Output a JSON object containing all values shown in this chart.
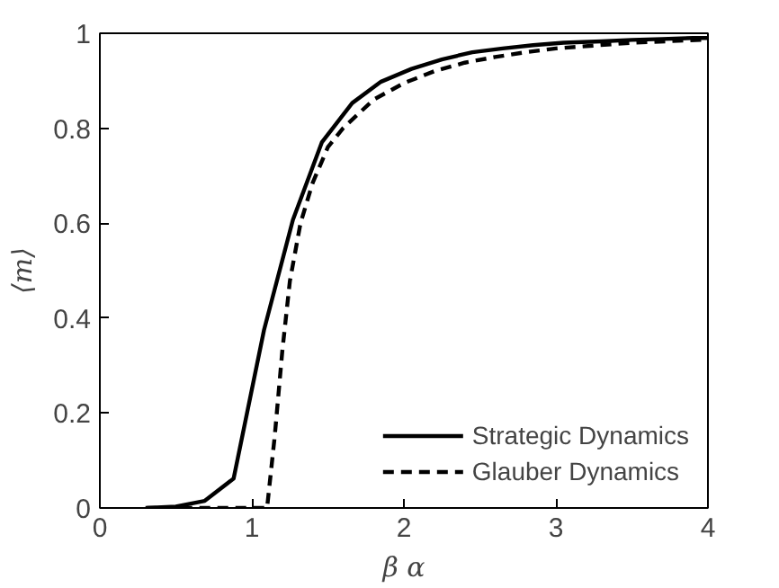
{
  "chart_data": {
    "type": "line",
    "xlabel": "β α",
    "ylabel": "⟨m⟩",
    "xlim": [
      0,
      4
    ],
    "ylim": [
      0,
      1
    ],
    "xticks": [
      0,
      1,
      2,
      3,
      4
    ],
    "yticks": [
      0,
      0.2,
      0.4,
      0.6,
      0.8,
      1
    ],
    "grid": false,
    "legend": "bottom right",
    "marker": "none",
    "series": [
      {
        "name": "Strategic Dynamics",
        "color": "#000000",
        "line_style": "solid",
        "x": [
          0.31,
          0.5,
          0.69,
          0.88,
          1.08,
          1.27,
          1.46,
          1.66,
          1.85,
          2.05,
          2.25,
          2.45,
          2.65,
          2.85,
          3.05,
          3.3,
          3.5,
          3.7,
          3.9,
          4.0
        ],
        "values": [
          0,
          0.003,
          0.015,
          0.062,
          0.375,
          0.607,
          0.77,
          0.853,
          0.898,
          0.925,
          0.945,
          0.96,
          0.968,
          0.975,
          0.98,
          0.983,
          0.986,
          0.988,
          0.99,
          0.99
        ]
      },
      {
        "name": "Glauber Dynamics",
        "color": "#000000",
        "line_style": "dashed",
        "x": [
          0.3,
          0.7,
          1.1,
          1.15,
          1.2,
          1.25,
          1.32,
          1.4,
          1.5,
          1.6,
          1.8,
          2.0,
          2.2,
          2.4,
          2.6,
          2.8,
          3.0,
          3.5,
          4.0
        ],
        "values": [
          0,
          0,
          0,
          0.15,
          0.33,
          0.478,
          0.6,
          0.685,
          0.76,
          0.8,
          0.86,
          0.895,
          0.92,
          0.938,
          0.95,
          0.96,
          0.968,
          0.98,
          0.987
        ]
      }
    ]
  }
}
